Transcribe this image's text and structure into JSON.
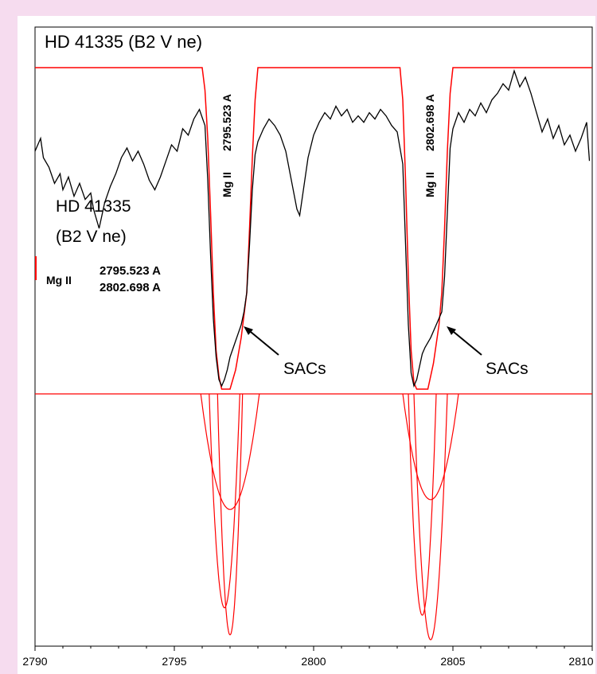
{
  "chart_data": {
    "type": "line",
    "title": "HD 41335 (B2 V ne)",
    "xlim": [
      2790,
      2810
    ],
    "xticks": [
      {
        "value": 2790,
        "label": "2790"
      },
      {
        "value": 2795,
        "label": "2795"
      },
      {
        "value": 2800,
        "label": "2800"
      },
      {
        "value": 2805,
        "label": "2805"
      },
      {
        "value": 2810,
        "label": "2810"
      }
    ],
    "grid": false,
    "legend": {
      "star_name": "HD 41335",
      "spectral_type": "(B2 V ne)",
      "ion": "Mg II",
      "wavelength_1": "2795.523 A",
      "wavelength_2": "2802.698 A"
    },
    "line_labels": [
      {
        "ion": "Mg II",
        "wavelength": "2795.523 A",
        "x": 2796.4
      },
      {
        "ion": "Mg II",
        "wavelength": "2802.698 A",
        "x": 2803.7
      }
    ],
    "annotations": [
      {
        "text": "SACs",
        "x": 2799.0,
        "points_to_x": 2797.6
      },
      {
        "text": "SACs",
        "x": 2806.5,
        "points_to_x": 2804.8
      }
    ],
    "colors": {
      "observed": "#000000",
      "model": "#ff0000"
    },
    "series": [
      {
        "kind": "observed",
        "points": [
          [
            2790.0,
            0.74
          ],
          [
            2790.2,
            0.78
          ],
          [
            2790.3,
            0.72
          ],
          [
            2790.5,
            0.69
          ],
          [
            2790.7,
            0.64
          ],
          [
            2790.9,
            0.67
          ],
          [
            2791.0,
            0.62
          ],
          [
            2791.2,
            0.66
          ],
          [
            2791.4,
            0.6
          ],
          [
            2791.6,
            0.64
          ],
          [
            2791.8,
            0.59
          ],
          [
            2792.0,
            0.61
          ],
          [
            2792.1,
            0.56
          ],
          [
            2792.3,
            0.5
          ],
          [
            2792.5,
            0.58
          ],
          [
            2792.7,
            0.63
          ],
          [
            2792.9,
            0.67
          ],
          [
            2793.1,
            0.72
          ],
          [
            2793.3,
            0.75
          ],
          [
            2793.5,
            0.71
          ],
          [
            2793.7,
            0.74
          ],
          [
            2793.9,
            0.7
          ],
          [
            2794.1,
            0.65
          ],
          [
            2794.3,
            0.62
          ],
          [
            2794.5,
            0.66
          ],
          [
            2794.7,
            0.71
          ],
          [
            2794.9,
            0.76
          ],
          [
            2795.1,
            0.74
          ],
          [
            2795.3,
            0.81
          ],
          [
            2795.5,
            0.79
          ],
          [
            2795.7,
            0.84
          ],
          [
            2795.9,
            0.87
          ],
          [
            2796.1,
            0.82
          ],
          [
            2796.2,
            0.65
          ],
          [
            2796.3,
            0.42
          ],
          [
            2796.4,
            0.22
          ],
          [
            2796.5,
            0.1
          ],
          [
            2796.6,
            0.03
          ],
          [
            2796.7,
            0.01
          ],
          [
            2796.8,
            0.03
          ],
          [
            2796.9,
            0.06
          ],
          [
            2797.0,
            0.1
          ],
          [
            2797.2,
            0.15
          ],
          [
            2797.4,
            0.2
          ],
          [
            2797.5,
            0.24
          ],
          [
            2797.6,
            0.3
          ],
          [
            2797.7,
            0.45
          ],
          [
            2797.8,
            0.62
          ],
          [
            2797.9,
            0.73
          ],
          [
            2798.0,
            0.77
          ],
          [
            2798.2,
            0.81
          ],
          [
            2798.4,
            0.84
          ],
          [
            2798.6,
            0.82
          ],
          [
            2798.8,
            0.79
          ],
          [
            2799.0,
            0.74
          ],
          [
            2799.2,
            0.65
          ],
          [
            2799.4,
            0.56
          ],
          [
            2799.5,
            0.54
          ],
          [
            2799.6,
            0.6
          ],
          [
            2799.8,
            0.72
          ],
          [
            2800.0,
            0.79
          ],
          [
            2800.2,
            0.83
          ],
          [
            2800.4,
            0.86
          ],
          [
            2800.6,
            0.84
          ],
          [
            2800.8,
            0.88
          ],
          [
            2801.0,
            0.85
          ],
          [
            2801.2,
            0.87
          ],
          [
            2801.4,
            0.83
          ],
          [
            2801.6,
            0.85
          ],
          [
            2801.8,
            0.83
          ],
          [
            2802.0,
            0.86
          ],
          [
            2802.2,
            0.84
          ],
          [
            2802.4,
            0.87
          ],
          [
            2802.6,
            0.85
          ],
          [
            2802.8,
            0.82
          ],
          [
            2803.0,
            0.8
          ],
          [
            2803.2,
            0.7
          ],
          [
            2803.3,
            0.45
          ],
          [
            2803.4,
            0.2
          ],
          [
            2803.5,
            0.05
          ],
          [
            2803.6,
            0.01
          ],
          [
            2803.7,
            0.03
          ],
          [
            2803.8,
            0.07
          ],
          [
            2803.9,
            0.11
          ],
          [
            2804.0,
            0.13
          ],
          [
            2804.2,
            0.16
          ],
          [
            2804.4,
            0.2
          ],
          [
            2804.6,
            0.24
          ],
          [
            2804.7,
            0.35
          ],
          [
            2804.8,
            0.55
          ],
          [
            2804.9,
            0.75
          ],
          [
            2805.0,
            0.81
          ],
          [
            2805.2,
            0.86
          ],
          [
            2805.4,
            0.83
          ],
          [
            2805.6,
            0.87
          ],
          [
            2805.8,
            0.85
          ],
          [
            2806.0,
            0.89
          ],
          [
            2806.2,
            0.86
          ],
          [
            2806.4,
            0.9
          ],
          [
            2806.6,
            0.92
          ],
          [
            2806.8,
            0.95
          ],
          [
            2807.0,
            0.93
          ],
          [
            2807.2,
            0.99
          ],
          [
            2807.4,
            0.94
          ],
          [
            2807.6,
            0.97
          ],
          [
            2807.8,
            0.92
          ],
          [
            2808.0,
            0.86
          ],
          [
            2808.2,
            0.8
          ],
          [
            2808.4,
            0.84
          ],
          [
            2808.6,
            0.78
          ],
          [
            2808.8,
            0.82
          ],
          [
            2809.0,
            0.76
          ],
          [
            2809.2,
            0.79
          ],
          [
            2809.4,
            0.74
          ],
          [
            2809.6,
            0.78
          ],
          [
            2809.8,
            0.83
          ],
          [
            2809.9,
            0.71
          ]
        ]
      },
      {
        "kind": "model-profile",
        "points": [
          [
            2790.0,
            1.0
          ],
          [
            2796.0,
            1.0
          ],
          [
            2796.1,
            0.93
          ],
          [
            2796.2,
            0.78
          ],
          [
            2796.3,
            0.55
          ],
          [
            2796.4,
            0.3
          ],
          [
            2796.5,
            0.12
          ],
          [
            2796.6,
            0.04
          ],
          [
            2796.7,
            0.0
          ],
          [
            2797.0,
            0.0
          ],
          [
            2797.2,
            0.06
          ],
          [
            2797.4,
            0.16
          ],
          [
            2797.6,
            0.3
          ],
          [
            2797.7,
            0.5
          ],
          [
            2797.8,
            0.72
          ],
          [
            2797.9,
            0.9
          ],
          [
            2798.0,
            1.0
          ],
          [
            2803.1,
            1.0
          ],
          [
            2803.2,
            0.9
          ],
          [
            2803.3,
            0.65
          ],
          [
            2803.4,
            0.35
          ],
          [
            2803.5,
            0.12
          ],
          [
            2803.6,
            0.02
          ],
          [
            2803.7,
            0.0
          ],
          [
            2804.1,
            0.0
          ],
          [
            2804.3,
            0.08
          ],
          [
            2804.5,
            0.2
          ],
          [
            2804.6,
            0.3
          ],
          [
            2804.7,
            0.5
          ],
          [
            2804.8,
            0.74
          ],
          [
            2804.9,
            0.92
          ],
          [
            2805.0,
            1.0
          ],
          [
            2810.0,
            1.0
          ]
        ]
      }
    ],
    "components": [
      {
        "line": "2795.523 A",
        "center": 2797.0,
        "depth": 0.98,
        "half_width": 0.45
      },
      {
        "line": "2795.523 A",
        "center": 2796.8,
        "depth": 0.87,
        "half_width": 0.55
      },
      {
        "line": "2795.523 A",
        "center": 2797.0,
        "depth": 0.47,
        "half_width": 1.05
      },
      {
        "line": "2802.698 A",
        "center": 2804.2,
        "depth": 1.0,
        "half_width": 0.6
      },
      {
        "line": "2802.698 A",
        "center": 2803.9,
        "depth": 0.9,
        "half_width": 0.5
      },
      {
        "line": "2802.698 A",
        "center": 2804.2,
        "depth": 0.43,
        "half_width": 1.0
      }
    ]
  }
}
